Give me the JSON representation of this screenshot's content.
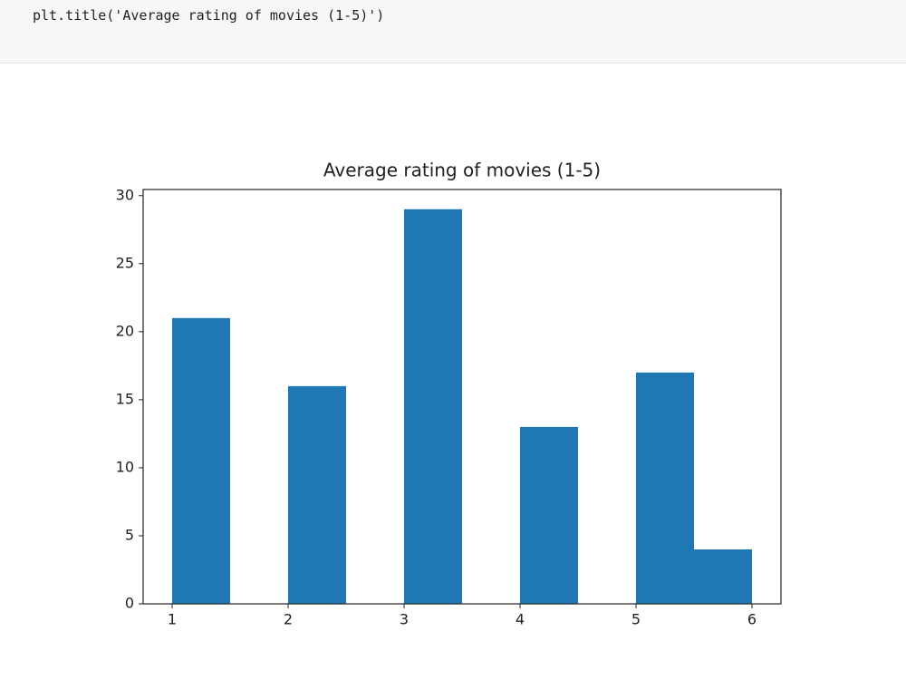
{
  "code": "plt.title('Average rating of movies (1-5)')",
  "chart_data": {
    "type": "histogram",
    "title": "Average rating of movies (1-5)",
    "bins": [
      1,
      1.5,
      2,
      2.5,
      3,
      3.5,
      4,
      4.5,
      5,
      5.5,
      6
    ],
    "values": [
      21,
      0,
      16,
      0,
      29,
      0,
      13,
      0,
      17,
      4
    ],
    "color": "#1f77b4",
    "xlim": [
      0.75,
      6.25
    ],
    "xticks": [
      1,
      2,
      3,
      4,
      5,
      6
    ],
    "ylim": [
      0,
      30.45
    ],
    "yticks": [
      0,
      5,
      10,
      15,
      20,
      25,
      30
    ]
  }
}
